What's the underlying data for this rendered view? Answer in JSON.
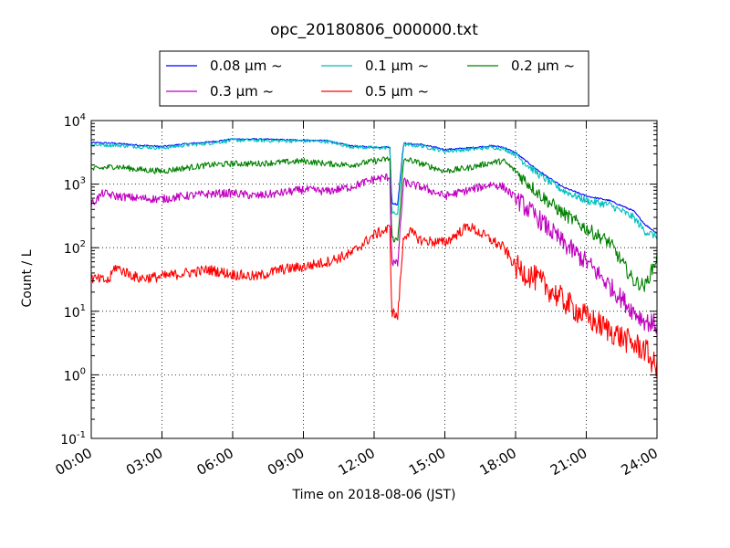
{
  "chart_data": {
    "type": "line",
    "title": "opc_20180806_000000.txt",
    "xlabel": "Time on 2018-08-06 (JST)",
    "ylabel": "Count / L",
    "yscale": "log",
    "ylim": [
      0.1,
      10000
    ],
    "y_tick_labels": [
      {
        "base": "10",
        "exp": "-1"
      },
      {
        "base": "10",
        "exp": "0"
      },
      {
        "base": "10",
        "exp": "1"
      },
      {
        "base": "10",
        "exp": "2"
      },
      {
        "base": "10",
        "exp": "3"
      },
      {
        "base": "10",
        "exp": "4"
      }
    ],
    "xlim": [
      "00:00",
      "24:00"
    ],
    "x_tick_labels": [
      "00:00",
      "03:00",
      "06:00",
      "09:00",
      "12:00",
      "15:00",
      "18:00",
      "21:00",
      "24:00"
    ],
    "grid": true,
    "legend_position": "top-center",
    "series": [
      {
        "name": "0.08 μm ~",
        "color": "#0000ff",
        "x": [
          "00:00",
          "01:00",
          "02:00",
          "03:00",
          "04:00",
          "05:00",
          "06:00",
          "07:00",
          "08:00",
          "09:00",
          "10:00",
          "11:00",
          "12:00",
          "12:40",
          "12:45",
          "13:00",
          "13:15",
          "13:30",
          "14:00",
          "15:00",
          "16:00",
          "17:00",
          "17:30",
          "18:00",
          "19:00",
          "20:00",
          "21:00",
          "22:00",
          "23:00",
          "23:30",
          "24:00"
        ],
        "values": [
          4500,
          4400,
          4100,
          3900,
          4300,
          4600,
          5100,
          5100,
          5000,
          4900,
          4800,
          4000,
          3800,
          3850,
          500,
          480,
          4400,
          4300,
          4200,
          3500,
          3700,
          4000,
          3800,
          3100,
          1600,
          900,
          650,
          550,
          380,
          230,
          170
        ]
      },
      {
        "name": "0.1 μm ~",
        "color": "#00bfbf",
        "x": [
          "00:00",
          "01:00",
          "02:00",
          "03:00",
          "04:00",
          "05:00",
          "06:00",
          "07:00",
          "08:00",
          "09:00",
          "10:00",
          "11:00",
          "12:00",
          "12:40",
          "12:45",
          "13:00",
          "13:15",
          "13:30",
          "14:00",
          "15:00",
          "16:00",
          "17:00",
          "17:30",
          "18:00",
          "19:00",
          "20:00",
          "21:00",
          "22:00",
          "23:00",
          "23:30",
          "24:00"
        ],
        "values": [
          4200,
          4100,
          3900,
          3700,
          4100,
          4400,
          4900,
          4900,
          4800,
          4800,
          4700,
          3900,
          3700,
          3750,
          350,
          340,
          4200,
          4100,
          4000,
          3300,
          3500,
          3800,
          3600,
          2900,
          1400,
          800,
          550,
          470,
          300,
          180,
          150
        ]
      },
      {
        "name": "0.2 μm ~",
        "color": "#008000",
        "x": [
          "00:00",
          "01:00",
          "02:00",
          "03:00",
          "04:00",
          "05:00",
          "06:00",
          "07:00",
          "08:00",
          "09:00",
          "10:00",
          "11:00",
          "12:00",
          "12:40",
          "12:45",
          "13:00",
          "13:15",
          "13:30",
          "14:00",
          "15:00",
          "16:00",
          "17:00",
          "17:30",
          "18:00",
          "19:00",
          "20:00",
          "21:00",
          "22:00",
          "23:00",
          "23:30",
          "24:00"
        ],
        "values": [
          1700,
          1900,
          1700,
          1600,
          1800,
          2000,
          2100,
          2100,
          2200,
          2300,
          2100,
          2000,
          2300,
          2500,
          140,
          130,
          2300,
          2400,
          2100,
          1600,
          1800,
          2200,
          2300,
          1600,
          700,
          350,
          200,
          120,
          30,
          25,
          70
        ]
      },
      {
        "name": "0.3 μm ~",
        "color": "#bf00bf",
        "x": [
          "00:00",
          "00:30",
          "01:00",
          "02:00",
          "03:00",
          "04:00",
          "05:00",
          "06:00",
          "07:00",
          "08:00",
          "09:00",
          "10:00",
          "11:00",
          "12:00",
          "12:40",
          "12:45",
          "13:00",
          "13:15",
          "13:30",
          "14:00",
          "15:00",
          "16:00",
          "17:00",
          "17:30",
          "18:00",
          "19:00",
          "20:00",
          "21:00",
          "22:00",
          "23:00",
          "23:30",
          "24:00"
        ],
        "values": [
          480,
          720,
          650,
          600,
          580,
          650,
          700,
          720,
          650,
          720,
          820,
          770,
          900,
          1200,
          1300,
          60,
          55,
          1100,
          1000,
          900,
          650,
          800,
          1000,
          900,
          600,
          280,
          120,
          60,
          25,
          10,
          7,
          6
        ]
      },
      {
        "name": "0.5 μm ~",
        "color": "#ff0000",
        "x": [
          "00:00",
          "00:45",
          "01:00",
          "02:00",
          "03:00",
          "04:00",
          "05:00",
          "06:00",
          "07:00",
          "08:00",
          "09:00",
          "10:00",
          "11:00",
          "12:00",
          "12:40",
          "12:45",
          "13:00",
          "13:15",
          "13:30",
          "14:00",
          "15:00",
          "16:00",
          "17:00",
          "17:30",
          "18:00",
          "19:00",
          "20:00",
          "21:00",
          "22:00",
          "23:00",
          "23:30",
          "24:00"
        ],
        "values": [
          33,
          30,
          50,
          33,
          35,
          40,
          45,
          38,
          35,
          45,
          50,
          60,
          80,
          160,
          200,
          10,
          8,
          150,
          180,
          130,
          120,
          220,
          130,
          100,
          50,
          30,
          15,
          8,
          5,
          3,
          2.5,
          1.2
        ]
      }
    ]
  }
}
